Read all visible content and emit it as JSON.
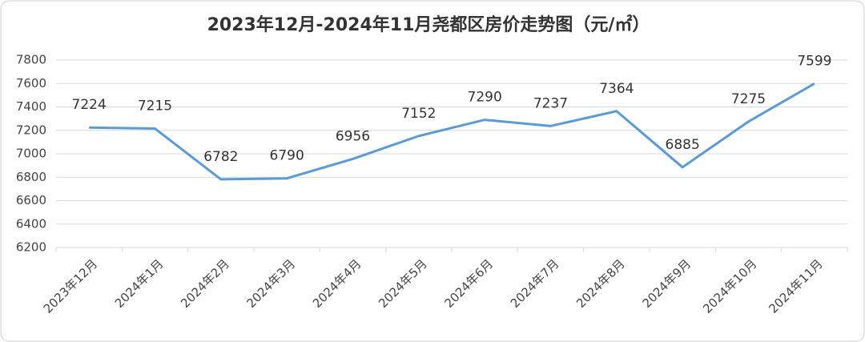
{
  "chart_data": {
    "type": "line",
    "title": "2023年12月-2024年11月尧都区房价走势图（元/㎡）",
    "categories": [
      "2023年12月",
      "2024年1月",
      "2024年2月",
      "2024年3月",
      "2024年4月",
      "2024年5月",
      "2024年6月",
      "2024年7月",
      "2024年8月",
      "2024年9月",
      "2024年10月",
      "2024年11月"
    ],
    "values": [
      7224,
      7215,
      6782,
      6790,
      6956,
      7152,
      7290,
      7237,
      7364,
      6885,
      7275,
      7599
    ],
    "color": "#5b9bd5",
    "ylim": [
      6200,
      7800
    ],
    "yticks": [
      6200,
      6400,
      6600,
      6800,
      7000,
      7200,
      7400,
      7600,
      7800
    ],
    "grid": true
  }
}
